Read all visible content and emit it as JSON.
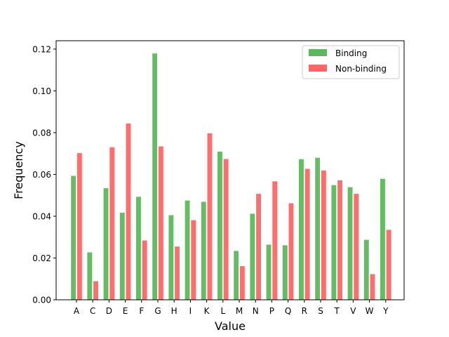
{
  "chart_data": {
    "type": "bar",
    "xlabel": "Value",
    "ylabel": "Frequency",
    "ylim": [
      0,
      0.124
    ],
    "yticks": [
      "0.00",
      "0.02",
      "0.04",
      "0.06",
      "0.08",
      "0.10",
      "0.12"
    ],
    "categories": [
      "A",
      "C",
      "D",
      "E",
      "F",
      "G",
      "H",
      "I",
      "K",
      "L",
      "M",
      "N",
      "P",
      "Q",
      "R",
      "S",
      "T",
      "V",
      "W",
      "Y"
    ],
    "series": [
      {
        "name": "Binding",
        "color": "#5cb85c",
        "values": [
          0.0594,
          0.0228,
          0.0535,
          0.0418,
          0.0494,
          0.118,
          0.0406,
          0.0476,
          0.047,
          0.071,
          0.0235,
          0.0413,
          0.0265,
          0.0262,
          0.0674,
          0.0681,
          0.055,
          0.054,
          0.0288,
          0.058
        ]
      },
      {
        "name": "Non-binding",
        "color": "#ff6666",
        "values": [
          0.0703,
          0.009,
          0.0731,
          0.0845,
          0.0285,
          0.0735,
          0.0256,
          0.0382,
          0.0798,
          0.0675,
          0.0162,
          0.0508,
          0.0568,
          0.0463,
          0.0628,
          0.062,
          0.0573,
          0.0508,
          0.0124,
          0.0336
        ]
      }
    ],
    "legend": "top-right",
    "grid": false
  }
}
